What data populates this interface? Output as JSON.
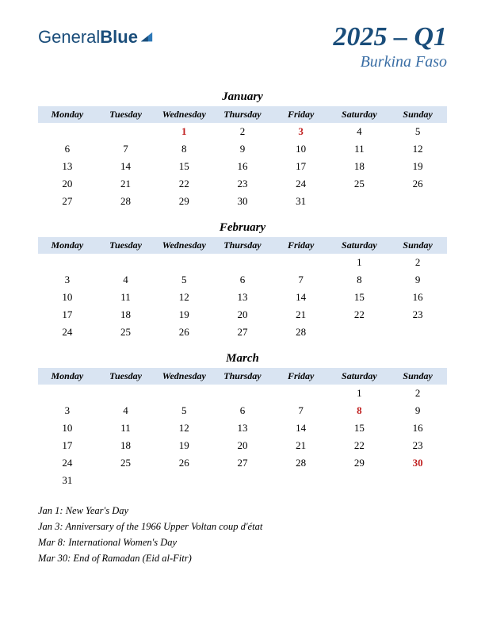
{
  "brand": {
    "part1": "General",
    "part2": "Blue"
  },
  "title": "2025 – Q1",
  "subtitle": "Burkina Faso",
  "weekday_labels": [
    "Monday",
    "Tuesday",
    "Wednesday",
    "Thursday",
    "Friday",
    "Saturday",
    "Sunday"
  ],
  "colors": {
    "header_bg": "#d9e4f2",
    "accent": "#1a4d7a",
    "accent_light": "#3a6ea5",
    "holiday": "#c02020",
    "text": "#000000",
    "background": "#ffffff"
  },
  "fonts": {
    "body_family": "Georgia, serif",
    "title_size_pt": 26,
    "subtitle_size_pt": 15,
    "month_size_pt": 11,
    "weekday_size_pt": 9,
    "day_size_pt": 10,
    "notes_size_pt": 9.5
  },
  "months": [
    {
      "name": "January",
      "weeks": [
        [
          "",
          "",
          "1",
          "2",
          "3",
          "4",
          "5"
        ],
        [
          "6",
          "7",
          "8",
          "9",
          "10",
          "11",
          "12"
        ],
        [
          "13",
          "14",
          "15",
          "16",
          "17",
          "18",
          "19"
        ],
        [
          "20",
          "21",
          "22",
          "23",
          "24",
          "25",
          "26"
        ],
        [
          "27",
          "28",
          "29",
          "30",
          "31",
          "",
          ""
        ]
      ],
      "holidays": [
        "1",
        "3"
      ]
    },
    {
      "name": "February",
      "weeks": [
        [
          "",
          "",
          "",
          "",
          "",
          "1",
          "2"
        ],
        [
          "3",
          "4",
          "5",
          "6",
          "7",
          "8",
          "9"
        ],
        [
          "10",
          "11",
          "12",
          "13",
          "14",
          "15",
          "16"
        ],
        [
          "17",
          "18",
          "19",
          "20",
          "21",
          "22",
          "23"
        ],
        [
          "24",
          "25",
          "26",
          "27",
          "28",
          "",
          ""
        ]
      ],
      "holidays": []
    },
    {
      "name": "March",
      "weeks": [
        [
          "",
          "",
          "",
          "",
          "",
          "1",
          "2"
        ],
        [
          "3",
          "4",
          "5",
          "6",
          "7",
          "8",
          "9"
        ],
        [
          "10",
          "11",
          "12",
          "13",
          "14",
          "15",
          "16"
        ],
        [
          "17",
          "18",
          "19",
          "20",
          "21",
          "22",
          "23"
        ],
        [
          "24",
          "25",
          "26",
          "27",
          "28",
          "29",
          "30"
        ],
        [
          "31",
          "",
          "",
          "",
          "",
          "",
          ""
        ]
      ],
      "holidays": [
        "8",
        "30"
      ]
    }
  ],
  "notes": [
    "Jan 1: New Year's Day",
    "Jan 3: Anniversary of the 1966 Upper Voltan coup d'état",
    "Mar 8: International Women's Day",
    "Mar 30: End of Ramadan (Eid al-Fitr)"
  ]
}
